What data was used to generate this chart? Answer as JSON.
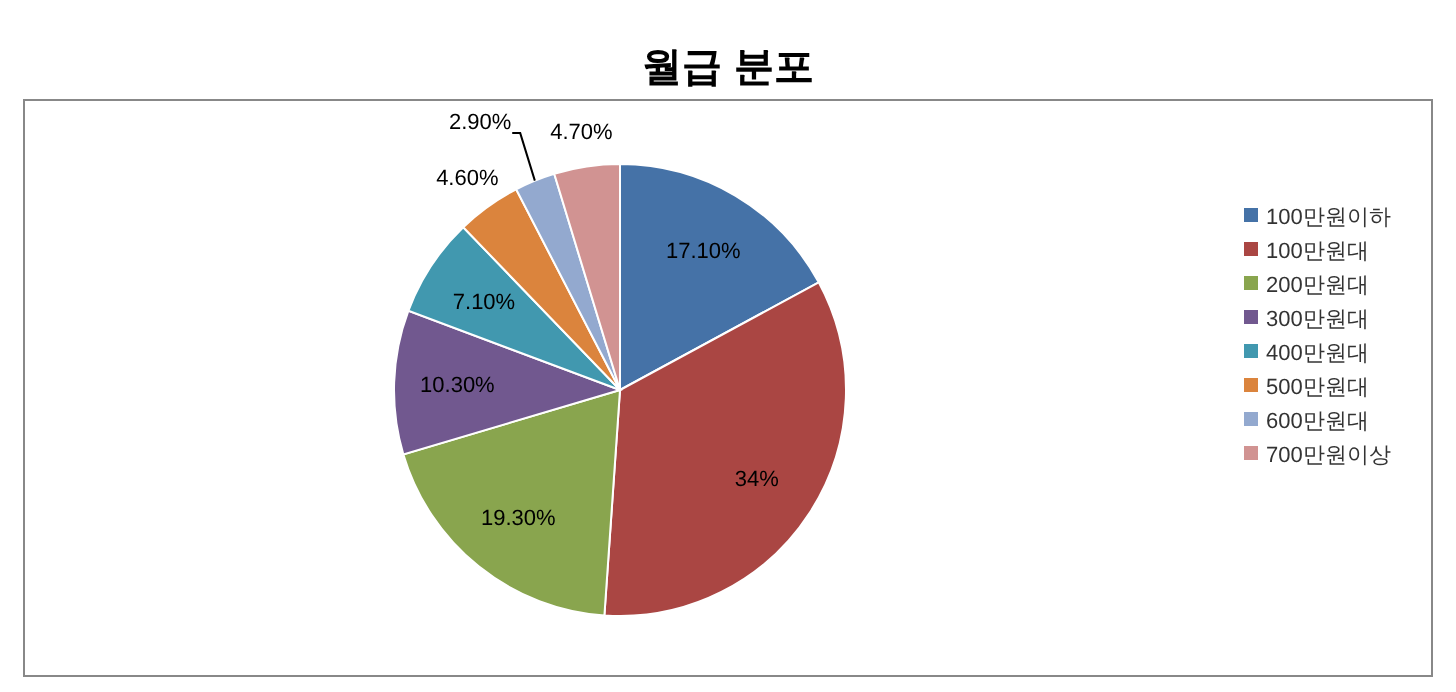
{
  "chart_data": {
    "type": "pie",
    "title": "월급 분포",
    "categories": [
      "100만원이하",
      "100만원대",
      "200만원대",
      "300만원대",
      "400만원대",
      "500만원대",
      "600만원대",
      "700만원이상"
    ],
    "values": [
      17.1,
      34,
      19.3,
      10.3,
      7.1,
      4.6,
      2.9,
      4.7
    ],
    "colors": [
      "#4572a7",
      "#aa4643",
      "#89a54e",
      "#71588f",
      "#4198af",
      "#db843d",
      "#93a9cf",
      "#d19392"
    ],
    "value_labels": [
      "17.10%",
      "34%",
      "19.30%",
      "10.30%",
      "7.10%",
      "4.60%",
      "2.90%",
      "4.70%"
    ],
    "legend": "right"
  }
}
